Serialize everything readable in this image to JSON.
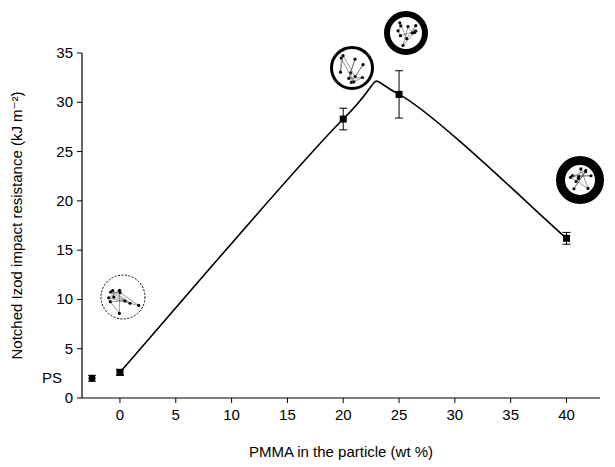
{
  "chart_data": {
    "type": "line",
    "x_label": "PMMA in the particle (wt %)",
    "y_label": "Notched Izod impact resistance (kJ m⁻²)",
    "xlim": [
      -3.4,
      43
    ],
    "xticks": [
      0,
      5,
      10,
      15,
      20,
      25,
      30,
      35,
      40
    ],
    "ylim": [
      0,
      35
    ],
    "yticks": [
      0,
      5,
      10,
      15,
      20,
      25,
      30,
      35
    ],
    "grid": false,
    "series": [
      {
        "type": "line",
        "x": [
          0,
          20,
          25,
          40
        ],
        "values": [
          2.6,
          28.3,
          30.8,
          16.2
        ],
        "errors": [
          0.3,
          1.1,
          2.4,
          0.6
        ],
        "color": "#000000",
        "marker": "square",
        "line_style": "solid"
      },
      {
        "type": "scatter",
        "name": "PS",
        "x": [
          -2.5
        ],
        "values": [
          2
        ],
        "errors": [
          0.3
        ],
        "color": "#000000",
        "marker": "circle"
      }
    ]
  }
}
